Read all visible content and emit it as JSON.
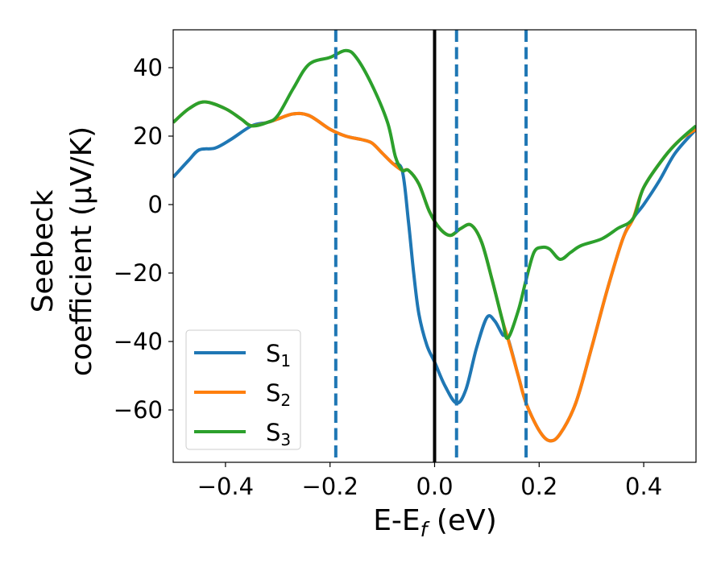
{
  "chart_data": {
    "type": "line",
    "title": "",
    "xlabel": "E-E_f (eV)",
    "xlabel_parts": {
      "main": "E-E",
      "sub": "f",
      "tail": " (eV)"
    },
    "ylabel_line1": "Seebeck",
    "ylabel_line2": "coefficient  (μV/K)",
    "xlim": [
      -0.5,
      0.5
    ],
    "ylim": [
      -75,
      51
    ],
    "xticks": [
      -0.4,
      -0.2,
      0.0,
      0.2,
      0.4
    ],
    "xtick_labels": [
      "−0.4",
      "−0.2",
      "0.0",
      "0.2",
      "0.4"
    ],
    "yticks": [
      40,
      20,
      0,
      -20,
      -40,
      -60
    ],
    "ytick_labels": [
      "40",
      "20",
      "0",
      "−20",
      "−40",
      "−60"
    ],
    "grid": false,
    "legend_placement": "lower-left",
    "vertical_lines": [
      {
        "x": 0.0,
        "style": "solid",
        "color": "#000000"
      },
      {
        "x": -0.189,
        "style": "dashed",
        "color": "#1f77b4"
      },
      {
        "x": 0.042,
        "style": "dashed",
        "color": "#1f77b4"
      },
      {
        "x": 0.175,
        "style": "dashed",
        "color": "#1f77b4"
      }
    ],
    "series": [
      {
        "name": "S1",
        "label_main": "S",
        "label_sub": "1",
        "color": "#1f77b4",
        "x": [
          -0.5,
          -0.47,
          -0.45,
          -0.42,
          -0.39,
          -0.35,
          -0.32,
          -0.3,
          -0.27,
          -0.24,
          -0.2,
          -0.17,
          -0.14,
          -0.12,
          -0.1,
          -0.08,
          -0.062,
          -0.05,
          -0.04,
          -0.03,
          -0.015,
          0.0,
          0.02,
          0.042,
          0.06,
          0.08,
          0.1,
          0.115,
          0.13,
          0.14,
          0.16,
          0.175,
          0.2,
          0.22,
          0.24,
          0.27,
          0.3,
          0.33,
          0.36,
          0.38,
          0.4,
          0.43,
          0.46,
          0.5
        ],
        "y": [
          8,
          13,
          16,
          16.5,
          19,
          23,
          24,
          25,
          26.5,
          26,
          22,
          20,
          19,
          18,
          15,
          12,
          10,
          -5,
          -20,
          -32,
          -41,
          -46,
          -53,
          -58,
          -54,
          -42,
          -33,
          -34,
          -38,
          -39,
          -50,
          -58,
          -66,
          -69,
          -67,
          -58,
          -42,
          -25,
          -10,
          -4,
          0,
          7,
          15,
          22
        ]
      },
      {
        "name": "S2",
        "label_main": "S",
        "label_sub": "2",
        "color": "#ff7f0e",
        "x": [
          -0.5,
          -0.47,
          -0.44,
          -0.4,
          -0.37,
          -0.35,
          -0.32,
          -0.3,
          -0.27,
          -0.24,
          -0.2,
          -0.17,
          -0.14,
          -0.12,
          -0.1,
          -0.08,
          -0.062,
          -0.05,
          -0.03,
          -0.01,
          0.01,
          0.03,
          0.05,
          0.07,
          0.09,
          0.11,
          0.13,
          0.14,
          0.16,
          0.175,
          0.2,
          0.22,
          0.24,
          0.27,
          0.3,
          0.33,
          0.36,
          0.38,
          0.4,
          0.44,
          0.47,
          0.5
        ],
        "y": [
          24,
          28,
          30,
          28,
          25,
          23,
          24,
          25,
          26.5,
          26,
          22,
          20,
          19,
          18,
          15,
          12,
          10,
          10,
          6,
          -2,
          -7,
          -9,
          -7,
          -6,
          -11,
          -22,
          -34,
          -39,
          -50,
          -58,
          -66,
          -69,
          -67,
          -58,
          -42,
          -25,
          -10,
          -4,
          5,
          14,
          19,
          22
        ]
      },
      {
        "name": "S3",
        "label_main": "S",
        "label_sub": "3",
        "color": "#2ca02c",
        "x": [
          -0.5,
          -0.47,
          -0.44,
          -0.4,
          -0.37,
          -0.35,
          -0.32,
          -0.3,
          -0.27,
          -0.24,
          -0.2,
          -0.17,
          -0.15,
          -0.12,
          -0.09,
          -0.075,
          -0.062,
          -0.05,
          -0.03,
          -0.01,
          0.01,
          0.03,
          0.05,
          0.07,
          0.09,
          0.11,
          0.13,
          0.14,
          0.16,
          0.175,
          0.19,
          0.205,
          0.22,
          0.24,
          0.26,
          0.28,
          0.32,
          0.35,
          0.38,
          0.4,
          0.44,
          0.47,
          0.5
        ],
        "y": [
          24,
          28,
          30,
          28,
          25,
          23,
          24,
          26,
          34,
          41,
          43,
          45,
          43,
          35,
          24,
          14,
          10,
          10,
          6,
          -2,
          -7,
          -9,
          -7,
          -6,
          -11,
          -22,
          -34,
          -39,
          -31,
          -22,
          -14,
          -12.5,
          -13,
          -16,
          -14,
          -12,
          -10,
          -7,
          -4,
          5,
          14,
          19,
          23
        ]
      }
    ]
  }
}
